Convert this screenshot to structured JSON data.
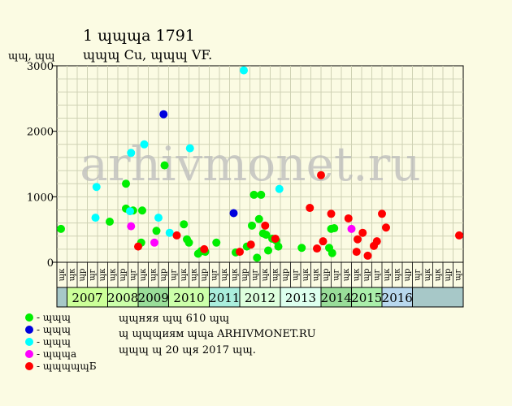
{
  "title_line1": "1 ɰɰɰа 1791",
  "title_line2": "ɰɰɰ Cu, ɰɰɰ VF.",
  "watermark": "arhivmonet.ru",
  "notes": [
    "ɰɰняя ɰɰ 610 ɰɰ",
    "ɰ ɰɰɰиям ɰɰа ARHIVMONET.RU",
    "ɰɰɰ ɰ 20 ɰя 2017 ɰɰ."
  ],
  "legend": [
    {
      "label": "- ɰɰɰ",
      "color": "#00ee00"
    },
    {
      "label": "- ɰɰɰ",
      "color": "#0000dd"
    },
    {
      "label": "- ɰɰɰ",
      "color": "#00ffff"
    },
    {
      "label": "- ɰɰɰа",
      "color": "#ff00ff"
    },
    {
      "label": "- ɰɰɰɰɰБ",
      "color": "#ff0000"
    }
  ],
  "chart_data": {
    "type": "scatter",
    "ylabel": "ɰɰ, ɰɰ",
    "ylim": [
      0,
      3000
    ],
    "yticks": [
      0,
      1000,
      2000,
      3000
    ],
    "x_unit": "quarter-slot",
    "xlim": [
      0,
      40
    ],
    "quarter_labels": [
      "ɰк",
      "ɰк",
      "ɰр",
      "ɰг",
      "ɰк",
      "ɰк",
      "ɰр",
      "ɰг",
      "ɰк",
      "ɰк",
      "ɰр",
      "ɰг",
      "ɰк",
      "ɰк",
      "ɰр",
      "ɰг",
      "ɰк",
      "ɰк",
      "ɰр",
      "ɰг",
      "ɰк",
      "ɰк",
      "ɰр",
      "ɰг",
      "ɰк",
      "ɰк",
      "ɰр",
      "ɰг",
      "ɰк",
      "ɰк",
      "ɰр",
      "ɰг",
      "ɰк",
      "ɰк",
      "ɰр",
      "ɰг",
      "ɰк",
      "ɰк",
      "ɰр",
      "ɰг"
    ],
    "years": [
      {
        "label": "",
        "start": 0,
        "end": 1,
        "color": "#a7c8c8"
      },
      {
        "label": "2007",
        "start": 1,
        "end": 5,
        "color": "#ccff99"
      },
      {
        "label": "2008",
        "start": 5,
        "end": 8,
        "color": "#ccffaa"
      },
      {
        "label": "2009",
        "start": 8,
        "end": 11,
        "color": "#99dd99"
      },
      {
        "label": "2010",
        "start": 11,
        "end": 15,
        "color": "#ccffaa"
      },
      {
        "label": "2011",
        "start": 15,
        "end": 18,
        "color": "#aaeedd"
      },
      {
        "label": "2012",
        "start": 18,
        "end": 22,
        "color": "#ddffdd"
      },
      {
        "label": "2013",
        "start": 22,
        "end": 26,
        "color": "#ddffee"
      },
      {
        "label": "2014",
        "start": 26,
        "end": 29,
        "color": "#99dd99"
      },
      {
        "label": "2015",
        "start": 29,
        "end": 32,
        "color": "#aaeeaa"
      },
      {
        "label": "2016",
        "start": 32,
        "end": 35,
        "color": "#b8d8ee"
      },
      {
        "label": "",
        "start": 35,
        "end": 40,
        "color": "#a7c8c8"
      }
    ],
    "series": [
      {
        "color": "#00ee00",
        "points": [
          [
            0.4,
            510
          ],
          [
            5.2,
            620
          ],
          [
            6.8,
            1200
          ],
          [
            6.8,
            820
          ],
          [
            7.5,
            790
          ],
          [
            8.3,
            300
          ],
          [
            8.4,
            790
          ],
          [
            9.8,
            480
          ],
          [
            10.6,
            1480
          ],
          [
            12.5,
            580
          ],
          [
            12.8,
            350
          ],
          [
            13.0,
            300
          ],
          [
            13.9,
            130
          ],
          [
            14.2,
            170
          ],
          [
            14.6,
            160
          ],
          [
            15.7,
            300
          ],
          [
            17.6,
            150
          ],
          [
            18.7,
            240
          ],
          [
            19.2,
            560
          ],
          [
            19.4,
            1030
          ],
          [
            19.7,
            70
          ],
          [
            19.9,
            660
          ],
          [
            20.1,
            1030
          ],
          [
            20.3,
            440
          ],
          [
            20.6,
            420
          ],
          [
            20.8,
            180
          ],
          [
            21.2,
            360
          ],
          [
            21.6,
            330
          ],
          [
            21.8,
            240
          ],
          [
            24.1,
            220
          ],
          [
            26.8,
            220
          ],
          [
            27.0,
            510
          ],
          [
            27.1,
            140
          ],
          [
            27.3,
            520
          ]
        ]
      },
      {
        "color": "#0000dd",
        "points": [
          [
            10.5,
            2260
          ],
          [
            17.4,
            750
          ]
        ]
      },
      {
        "color": "#00ffff",
        "points": [
          [
            3.8,
            680
          ],
          [
            3.9,
            1150
          ],
          [
            7.2,
            780
          ],
          [
            7.3,
            1670
          ],
          [
            8.6,
            1800
          ],
          [
            10.0,
            680
          ],
          [
            11.1,
            450
          ],
          [
            13.1,
            1740
          ],
          [
            18.4,
            2930
          ],
          [
            21.9,
            1120
          ]
        ]
      },
      {
        "color": "#ff00ff",
        "points": [
          [
            7.3,
            550
          ],
          [
            9.6,
            300
          ],
          [
            29.0,
            510
          ]
        ]
      },
      {
        "color": "#ff0000",
        "points": [
          [
            8.0,
            240
          ],
          [
            11.8,
            410
          ],
          [
            14.5,
            200
          ],
          [
            18.0,
            160
          ],
          [
            19.1,
            270
          ],
          [
            20.5,
            560
          ],
          [
            21.5,
            360
          ],
          [
            24.9,
            830
          ],
          [
            25.6,
            210
          ],
          [
            26.0,
            1330
          ],
          [
            26.2,
            320
          ],
          [
            27.0,
            740
          ],
          [
            28.7,
            670
          ],
          [
            29.5,
            160
          ],
          [
            29.6,
            350
          ],
          [
            30.1,
            450
          ],
          [
            30.6,
            100
          ],
          [
            31.2,
            250
          ],
          [
            31.5,
            320
          ],
          [
            32.0,
            740
          ],
          [
            32.4,
            530
          ],
          [
            39.6,
            410
          ]
        ]
      }
    ]
  }
}
